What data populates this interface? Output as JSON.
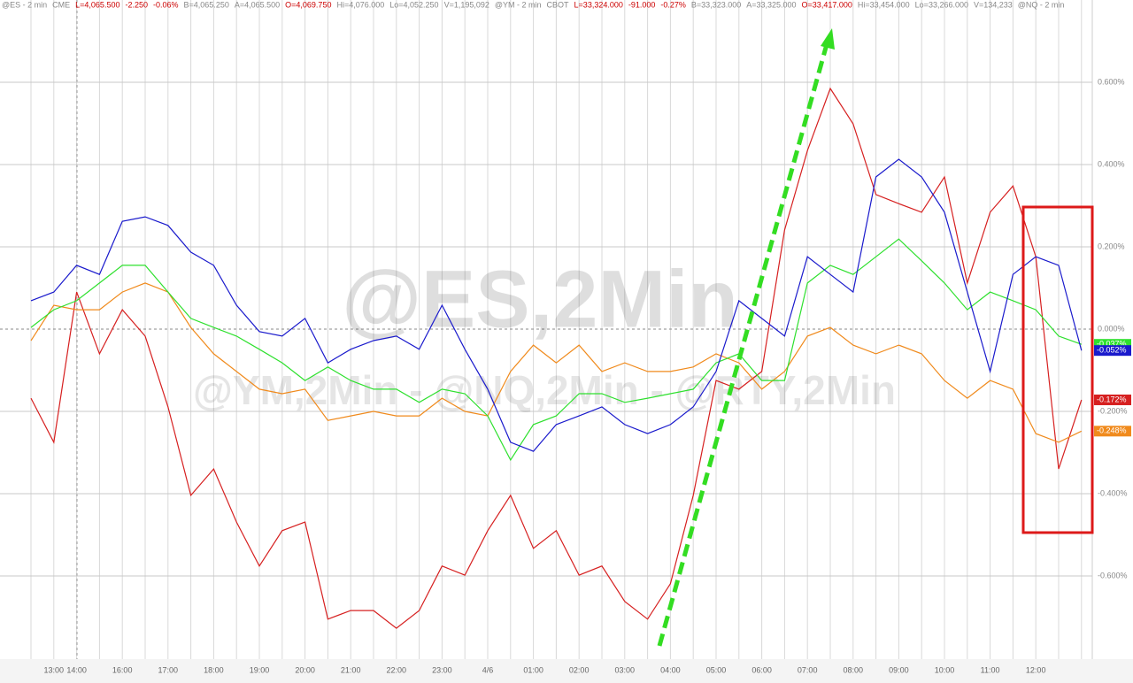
{
  "chart_data": {
    "type": "line",
    "header_segments": [
      {
        "text": "@ES - 2 min",
        "color": "#888888"
      },
      {
        "text": "CME",
        "color": "#888888"
      },
      {
        "text": "L=4,065.500",
        "color": "#cc0000"
      },
      {
        "text": "-2.250",
        "color": "#cc0000"
      },
      {
        "text": "-0.06%",
        "color": "#cc0000"
      },
      {
        "text": "B=4,065.250",
        "color": "#888888"
      },
      {
        "text": "A=4,065.500",
        "color": "#888888"
      },
      {
        "text": "O=4,069.750",
        "color": "#cc0000"
      },
      {
        "text": "Hi=4,076.000",
        "color": "#888888"
      },
      {
        "text": "Lo=4,052.250",
        "color": "#888888"
      },
      {
        "text": "V=1,195,092",
        "color": "#888888"
      },
      {
        "text": "@YM - 2 min",
        "color": "#888888"
      },
      {
        "text": "CBOT",
        "color": "#888888"
      },
      {
        "text": "L=33,324.000",
        "color": "#cc0000"
      },
      {
        "text": "-91.000",
        "color": "#cc0000"
      },
      {
        "text": "-0.27%",
        "color": "#cc0000"
      },
      {
        "text": "B=33,323.000",
        "color": "#888888"
      },
      {
        "text": "A=33,325.000",
        "color": "#888888"
      },
      {
        "text": "O=33,417.000",
        "color": "#cc0000"
      },
      {
        "text": "Hi=33,454.000",
        "color": "#888888"
      },
      {
        "text": "Lo=33,266.000",
        "color": "#888888"
      },
      {
        "text": "V=134,233",
        "color": "#888888"
      },
      {
        "text": "@NQ - 2 min",
        "color": "#888888"
      }
    ],
    "watermark": "@ES,2Min",
    "watermark_sub": "@YM,2Min - @NQ,2Min - @RTY,2Min",
    "categories": [
      null,
      "13:00",
      "14:00",
      null,
      "16:00",
      null,
      "17:00",
      null,
      "18:00",
      null,
      "19:00",
      null,
      "20:00",
      null,
      "21:00",
      null,
      "22:00",
      null,
      "23:00",
      null,
      "4/6",
      null,
      "01:00",
      null,
      "02:00",
      null,
      "03:00",
      null,
      "04:00",
      null,
      "05:00",
      null,
      "06:00",
      null,
      "07:00",
      null,
      "08:00",
      null,
      "09:00",
      null,
      "10:00",
      null,
      "11:00",
      null,
      "12:00",
      null,
      null
    ],
    "series": [
      {
        "color": "#d62020",
        "last_label": "-0.172%",
        "values": [
          -0.168,
          -0.275,
          0.09,
          -0.06,
          0.047,
          -0.017,
          -0.189,
          -0.404,
          -0.34,
          -0.469,
          -0.576,
          -0.49,
          -0.469,
          -0.705,
          -0.684,
          -0.684,
          -0.727,
          -0.684,
          -0.576,
          -0.598,
          -0.49,
          -0.404,
          -0.533,
          -0.49,
          -0.598,
          -0.576,
          -0.662,
          -0.705,
          -0.619,
          -0.404,
          -0.125,
          -0.146,
          -0.103,
          0.241,
          0.434,
          0.585,
          0.499,
          0.327,
          0.305,
          0.284,
          0.37,
          0.112,
          0.284,
          0.348,
          0.176,
          -0.34,
          -0.172
        ]
      },
      {
        "color": "#f08a1c",
        "last_label": "-0.248%",
        "values": [
          -0.028,
          0.058,
          0.047,
          0.047,
          0.09,
          0.112,
          0.09,
          0.004,
          -0.06,
          -0.103,
          -0.146,
          -0.157,
          -0.146,
          -0.222,
          -0.211,
          -0.2,
          -0.211,
          -0.211,
          -0.168,
          -0.2,
          -0.211,
          -0.103,
          -0.039,
          -0.082,
          -0.039,
          -0.103,
          -0.082,
          -0.103,
          -0.103,
          -0.092,
          -0.06,
          -0.082,
          -0.146,
          -0.103,
          -0.017,
          0.004,
          -0.039,
          -0.06,
          -0.039,
          -0.06,
          -0.125,
          -0.168,
          -0.125,
          -0.146,
          -0.254,
          -0.275,
          -0.248
        ]
      },
      {
        "color": "#2ee02e",
        "last_label": "-0.037%",
        "values": [
          0.004,
          0.047,
          0.069,
          0.112,
          0.155,
          0.155,
          0.09,
          0.026,
          0.004,
          -0.017,
          -0.049,
          -0.082,
          -0.125,
          -0.092,
          -0.125,
          -0.146,
          -0.146,
          -0.178,
          -0.146,
          -0.157,
          -0.211,
          -0.318,
          -0.232,
          -0.211,
          -0.157,
          -0.157,
          -0.178,
          -0.168,
          -0.157,
          -0.146,
          -0.082,
          -0.06,
          -0.125,
          -0.125,
          0.112,
          0.155,
          0.133,
          0.176,
          0.219,
          0.166,
          0.112,
          0.047,
          0.09,
          0.069,
          0.047,
          -0.017,
          -0.037
        ]
      },
      {
        "color": "#1a1acc",
        "last_label": "-0.052%",
        "values": [
          0.069,
          0.09,
          0.155,
          0.133,
          0.262,
          0.273,
          0.252,
          0.187,
          0.155,
          0.058,
          -0.006,
          -0.017,
          0.026,
          -0.082,
          -0.049,
          -0.028,
          -0.017,
          -0.049,
          0.058,
          -0.049,
          -0.146,
          -0.275,
          -0.297,
          -0.232,
          -0.211,
          -0.189,
          -0.232,
          -0.254,
          -0.232,
          -0.189,
          -0.103,
          0.069,
          0.026,
          -0.017,
          0.176,
          0.133,
          0.09,
          0.37,
          0.413,
          0.37,
          0.284,
          0.09,
          -0.103,
          0.133,
          0.176,
          0.155,
          -0.052
        ]
      }
    ],
    "ylim": [
      -0.8,
      0.8
    ],
    "yticks": [
      {
        "value": -0.6,
        "label": "-0.600%"
      },
      {
        "value": -0.4,
        "label": "-0.400%"
      },
      {
        "value": -0.2,
        "label": "-0.200%"
      },
      {
        "value": 0,
        "label": "0.000%"
      },
      {
        "value": 0.2,
        "label": "0.200%"
      },
      {
        "value": 0.4,
        "label": "0.400%"
      },
      {
        "value": 0.6,
        "label": "0.600%"
      }
    ],
    "grid": true
  }
}
